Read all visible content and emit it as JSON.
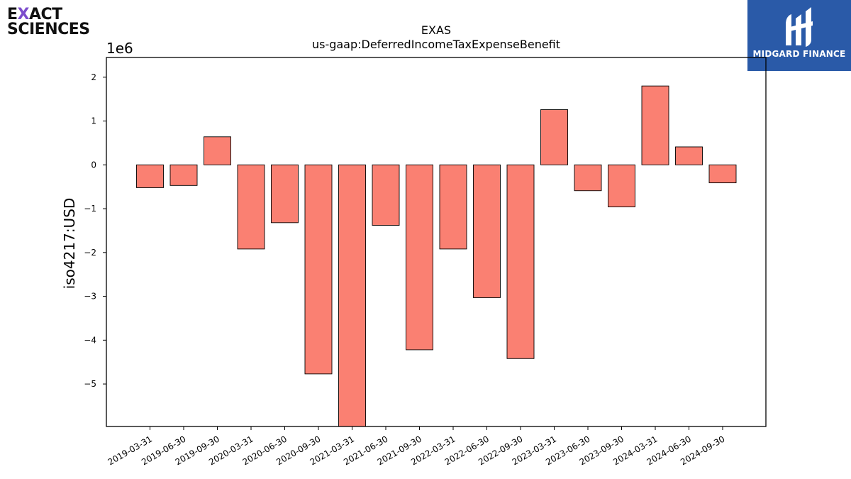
{
  "logos": {
    "left": {
      "line1_a": "E",
      "line1_x": "X",
      "line1_b": "ACT",
      "line2": "SCIENCES"
    },
    "right": {
      "text": "MIDGARD FINANCE",
      "bg_color": "#2a5aa8"
    }
  },
  "chart_data": {
    "type": "bar",
    "title": "EXAS",
    "subtitle": "us-gaap:DeferredIncomeTaxExpenseBenefit",
    "ylabel": "iso4217:USD",
    "xlabel": "",
    "y_multiplier_label": "1e6",
    "ylim": [
      -5.97,
      2.45
    ],
    "yticks": [
      2,
      1,
      0,
      -1,
      -2,
      -3,
      -4,
      -5
    ],
    "ytick_labels": [
      "2",
      "1",
      "0",
      "−1",
      "−2",
      "−3",
      "−4",
      "−5"
    ],
    "bar_color": "#fa8072",
    "edge_color": "#000000",
    "categories": [
      "2019-03-31",
      "2019-06-30",
      "2019-09-30",
      "2020-03-31",
      "2020-06-30",
      "2020-09-30",
      "2021-03-31",
      "2021-06-30",
      "2021-09-30",
      "2022-03-31",
      "2022-06-30",
      "2022-09-30",
      "2023-03-31",
      "2023-06-30",
      "2023-09-30",
      "2024-03-31",
      "2024-06-30",
      "2024-09-30"
    ],
    "values": [
      -0.52,
      -0.47,
      0.64,
      -1.92,
      -1.32,
      -4.77,
      -6.0,
      -1.38,
      -4.22,
      -1.92,
      -3.03,
      -4.42,
      1.26,
      -0.59,
      -0.96,
      1.8,
      0.41,
      -0.41
    ],
    "grid": false,
    "legend": "none"
  }
}
